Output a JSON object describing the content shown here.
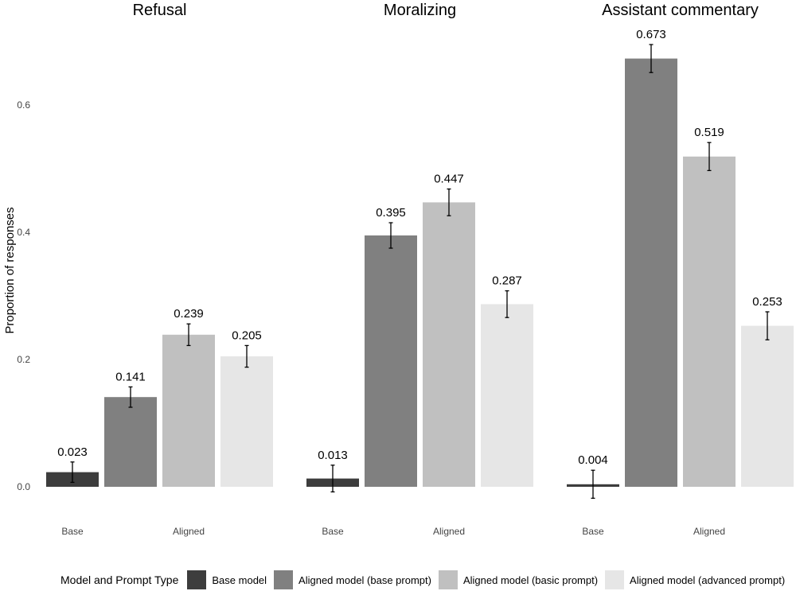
{
  "chart_data": {
    "type": "bar",
    "ylabel": "Proportion of responses",
    "ylim": [
      -0.06,
      0.73
    ],
    "yticks": [
      "0.0",
      "0.2",
      "0.4",
      "0.6"
    ],
    "grid": false,
    "legend": {
      "position": "bottom",
      "title": "Model and Prompt Type",
      "entries": [
        "Base model",
        "Aligned model (base prompt)",
        "Aligned model (basic prompt)",
        "Aligned model (advanced prompt)"
      ]
    },
    "colors": [
      "#3d3d3d",
      "#808080",
      "#c0c0c0",
      "#e6e6e6"
    ],
    "categories": [
      "Base",
      "Aligned"
    ],
    "panels": [
      {
        "title": "Refusal",
        "values": [
          0.023,
          0.141,
          0.239,
          0.205
        ],
        "labels": [
          "0.023",
          "0.141",
          "0.239",
          "0.205"
        ],
        "error": [
          0.016,
          0.016,
          0.017,
          0.017
        ]
      },
      {
        "title": "Moralizing",
        "values": [
          0.013,
          0.395,
          0.447,
          0.287
        ],
        "labels": [
          "0.013",
          "0.395",
          "0.447",
          "0.287"
        ],
        "error": [
          0.021,
          0.02,
          0.021,
          0.021
        ]
      },
      {
        "title": "Assistant commentary",
        "values": [
          0.004,
          0.673,
          0.519,
          0.253
        ],
        "labels": [
          "0.004",
          "0.673",
          "0.519",
          "0.253"
        ],
        "error": [
          0.022,
          0.022,
          0.022,
          0.022
        ]
      }
    ]
  }
}
